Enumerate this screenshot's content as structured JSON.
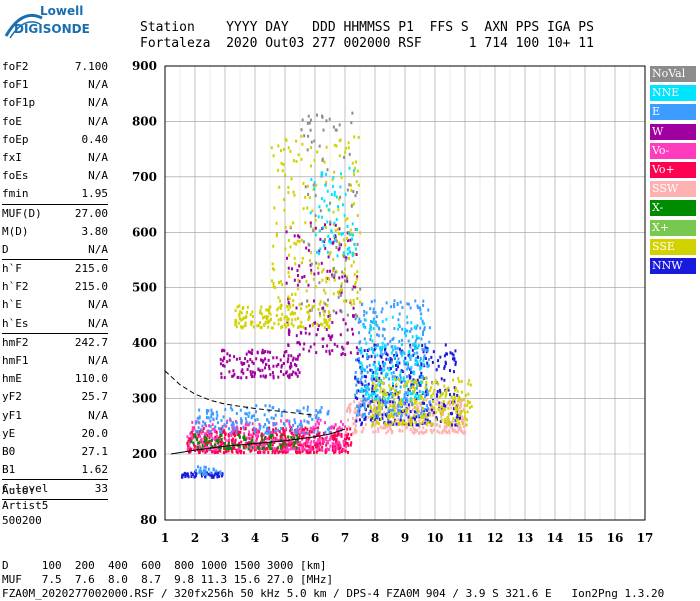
{
  "logo": {
    "line1": "Lowell",
    "line2": "DIGISONDE"
  },
  "header": {
    "line1": "Station    YYYY DAY   DDD HHMMSS P1  FFS S  AXN PPS IGA PS",
    "line2": "Fortaleza  2020 Out03 277 002000 RSF      1 714 100 10+ 11"
  },
  "params": {
    "group1": [
      {
        "label": "foF2",
        "value": "7.100"
      },
      {
        "label": "foF1",
        "value": "N/A"
      },
      {
        "label": "foF1p",
        "value": "N/A"
      },
      {
        "label": "foE",
        "value": "N/A"
      },
      {
        "label": "foEp",
        "value": "0.40"
      },
      {
        "label": "fxI",
        "value": "N/A"
      },
      {
        "label": "foEs",
        "value": "N/A"
      },
      {
        "label": "fmin",
        "value": "1.95"
      }
    ],
    "group2": [
      {
        "label": "MUF(D)",
        "value": "27.00"
      },
      {
        "label": "M(D)",
        "value": "3.80"
      },
      {
        "label": "D",
        "value": "N/A"
      }
    ],
    "group3": [
      {
        "label": "h`F",
        "value": "215.0"
      },
      {
        "label": "h`F2",
        "value": "215.0"
      },
      {
        "label": "h`E",
        "value": "N/A"
      },
      {
        "label": "h`Es",
        "value": "N/A"
      }
    ],
    "group4": [
      {
        "label": "hmF2",
        "value": "242.7"
      },
      {
        "label": "hmF1",
        "value": "N/A"
      },
      {
        "label": "hmE",
        "value": "110.0"
      },
      {
        "label": "yF2",
        "value": "25.7"
      },
      {
        "label": "yF1",
        "value": "N/A"
      },
      {
        "label": "yE",
        "value": "20.0"
      },
      {
        "label": "B0",
        "value": "27.1"
      },
      {
        "label": "B1",
        "value": "1.62"
      }
    ],
    "group5": [
      {
        "label": "C-level",
        "value": "33"
      }
    ]
  },
  "artist": {
    "line1": "Auto:",
    "line2": "Artist5",
    "line3": "500200"
  },
  "legend": [
    {
      "label": "NoVal",
      "color": "#8c8c8c"
    },
    {
      "label": "NNE",
      "color": "#00e5ff"
    },
    {
      "label": "E",
      "color": "#3d9cff"
    },
    {
      "label": "W",
      "color": "#a000a0"
    },
    {
      "label": "Vo-",
      "color": "#ff3cbe"
    },
    {
      "label": "Vo+",
      "color": "#ff0050"
    },
    {
      "label": "SSW",
      "color": "#ffb0b0"
    },
    {
      "label": "X-",
      "color": "#008c00"
    },
    {
      "label": "X+",
      "color": "#78c850"
    },
    {
      "label": "SSE",
      "color": "#d2d200"
    },
    {
      "label": "NNW",
      "color": "#1a1adc"
    }
  ],
  "footer": {
    "line1": "D     100  200  400  600  800 1000 1500 3000 [km]",
    "line2": "MUF   7.5  7.6  8.0  8.7  9.8 11.3 15.6 27.0 [MHz]",
    "line3": "FZA0M_2020277002000.RSF / 320fx256h 50 kHz 5.0 km / DPS-4 FZA0M 904 / 3.9 S 321.6 E   Ion2Png 1.3.20"
  },
  "chart_data": {
    "type": "scatter",
    "x_ticks": [
      "1",
      "2",
      "3",
      "4",
      "5",
      "6",
      "7",
      "8",
      "9",
      "10",
      "11",
      "12",
      "13",
      "14",
      "15",
      "16",
      "17"
    ],
    "y_ticks": [
      "80",
      "200",
      "300",
      "400",
      "500",
      "600",
      "700",
      "800",
      "900"
    ],
    "xlim": [
      1,
      17
    ],
    "y_axis_tick_values": [
      80,
      200,
      300,
      400,
      500,
      600,
      700,
      800,
      900
    ],
    "grid": true,
    "trace_curve": [
      [
        1.2,
        200
      ],
      [
        2.0,
        207
      ],
      [
        3.0,
        214
      ],
      [
        4.0,
        219
      ],
      [
        5.0,
        224
      ],
      [
        6.0,
        231
      ],
      [
        6.5,
        236
      ],
      [
        7.0,
        245
      ]
    ],
    "dashed_curve": [
      [
        1.0,
        350
      ],
      [
        1.5,
        325
      ],
      [
        2.0,
        308
      ],
      [
        2.5,
        297
      ],
      [
        3.0,
        290
      ],
      [
        4.0,
        282
      ],
      [
        5.0,
        276
      ],
      [
        6.0,
        270
      ]
    ],
    "echo_clusters": [
      {
        "color": "#ff0050",
        "xmin": 1.7,
        "xmax": 7.2,
        "ymin": 205,
        "ymax": 250,
        "count": 520
      },
      {
        "color": "#ff3cbe",
        "xmin": 1.7,
        "xmax": 7.0,
        "ymin": 210,
        "ymax": 265,
        "count": 280
      },
      {
        "color": "#008c00",
        "xmin": 1.8,
        "xmax": 5.5,
        "ymin": 212,
        "ymax": 238,
        "count": 90
      },
      {
        "color": "#3d9cff",
        "xmin": 2.0,
        "xmax": 6.5,
        "ymin": 240,
        "ymax": 290,
        "count": 160
      },
      {
        "color": "#ffb0b0",
        "xmin": 7.0,
        "xmax": 11.0,
        "ymin": 240,
        "ymax": 300,
        "count": 300
      },
      {
        "color": "#1a1adc",
        "xmin": 7.3,
        "xmax": 10.8,
        "ymin": 255,
        "ymax": 400,
        "count": 320
      },
      {
        "color": "#3d9cff",
        "xmin": 7.3,
        "xmax": 9.8,
        "ymin": 270,
        "ymax": 480,
        "count": 320
      },
      {
        "color": "#00e5ff",
        "xmin": 7.5,
        "xmax": 9.6,
        "ymin": 300,
        "ymax": 450,
        "count": 160
      },
      {
        "color": "#d2d200",
        "xmin": 7.8,
        "xmax": 11.2,
        "ymin": 255,
        "ymax": 340,
        "count": 260
      },
      {
        "color": "#a000a0",
        "xmin": 2.8,
        "xmax": 5.5,
        "ymin": 340,
        "ymax": 390,
        "count": 130
      },
      {
        "color": "#a000a0",
        "xmin": 5.0,
        "xmax": 7.4,
        "ymin": 380,
        "ymax": 620,
        "count": 150
      },
      {
        "color": "#d2d200",
        "xmin": 3.3,
        "xmax": 6.5,
        "ymin": 430,
        "ymax": 470,
        "count": 150
      },
      {
        "color": "#d2d200",
        "xmin": 4.5,
        "xmax": 7.5,
        "ymin": 470,
        "ymax": 780,
        "count": 200
      },
      {
        "color": "#8c8c8c",
        "xmin": 5.5,
        "xmax": 7.5,
        "ymin": 450,
        "ymax": 820,
        "count": 90
      },
      {
        "color": "#00e5ff",
        "xmin": 5.8,
        "xmax": 7.4,
        "ymin": 560,
        "ymax": 720,
        "count": 70
      },
      {
        "color": "#1a1adc",
        "xmin": 1.5,
        "xmax": 2.9,
        "ymin": 160,
        "ymax": 170,
        "count": 50
      },
      {
        "color": "#3d9cff",
        "xmin": 2.0,
        "xmax": 2.9,
        "ymin": 165,
        "ymax": 180,
        "count": 25
      }
    ]
  }
}
